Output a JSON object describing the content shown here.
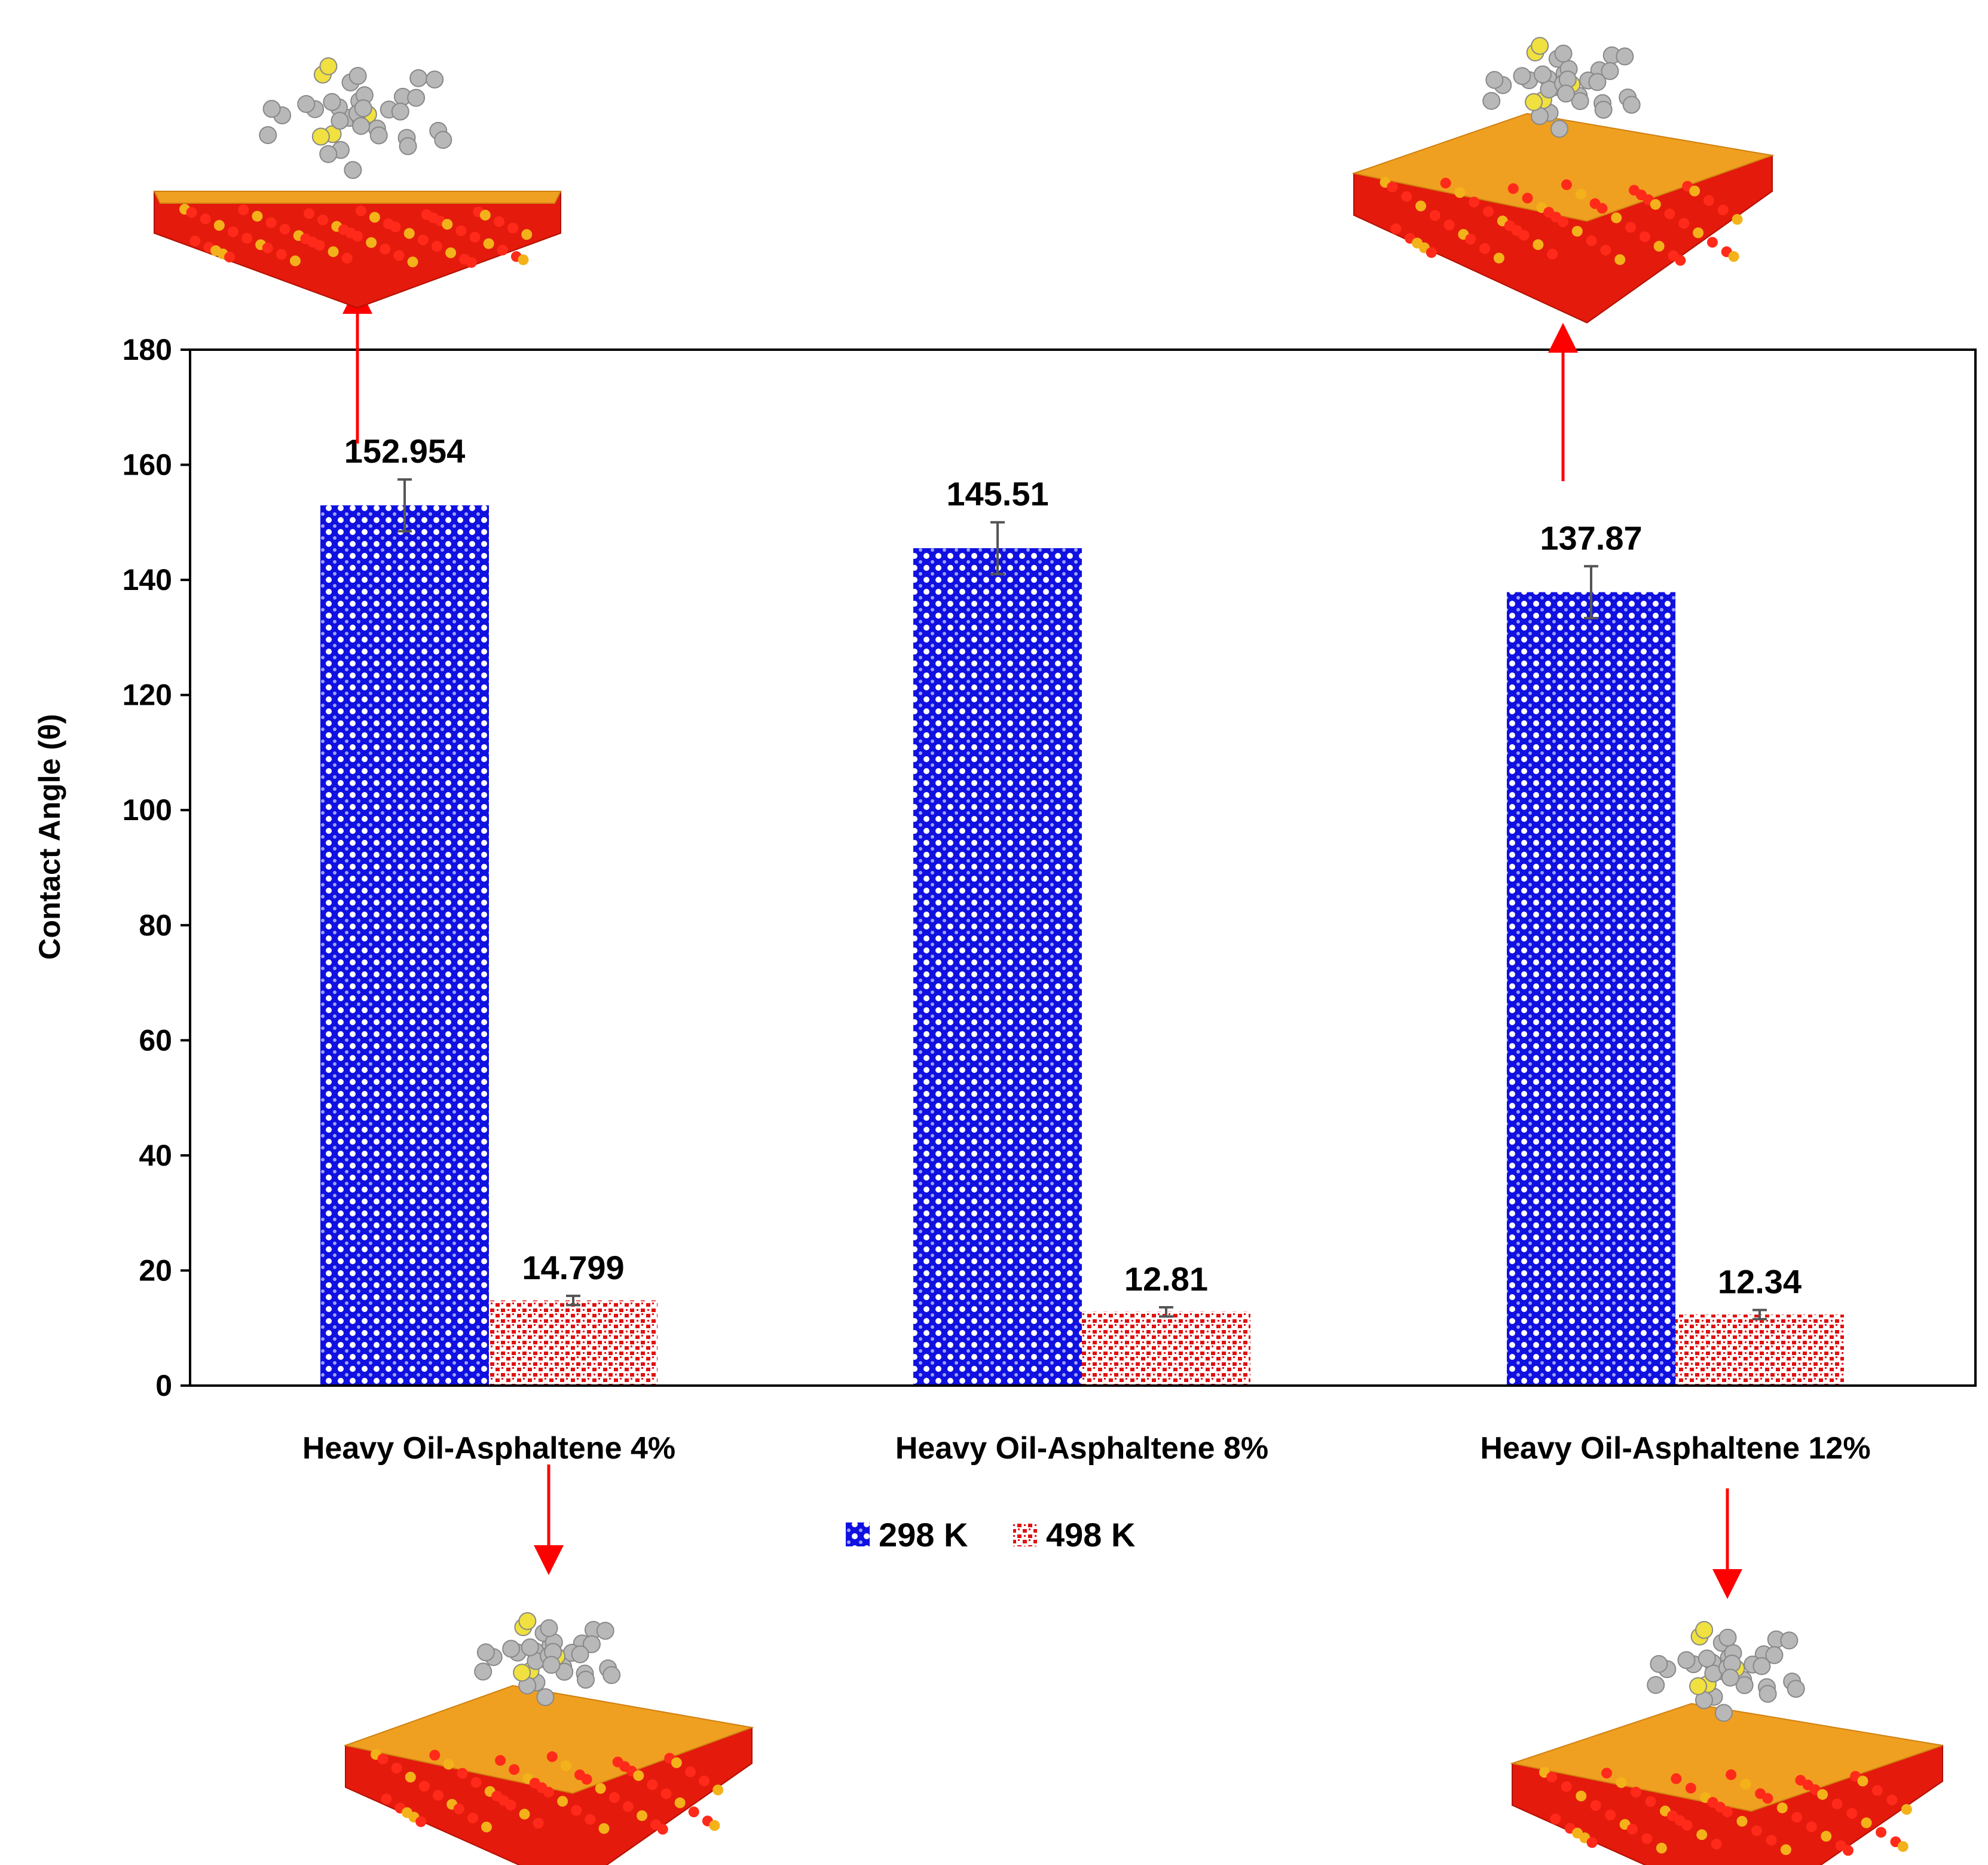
{
  "chart_data": {
    "type": "bar",
    "ylabel": "Contact Angle (θ)",
    "xlabel": "",
    "ylim": [
      0,
      180
    ],
    "yticks": [
      0,
      20,
      40,
      60,
      80,
      100,
      120,
      140,
      160,
      180
    ],
    "categories": [
      "Heavy Oil-Asphaltene 4%",
      "Heavy Oil-Asphaltene 8%",
      "Heavy Oil-Asphaltene 12%"
    ],
    "series": [
      {
        "name": "298 K",
        "color": "#1010e0",
        "values": [
          152.954,
          145.51,
          137.87
        ],
        "labels": [
          "152.954",
          "145.51",
          "137.87"
        ],
        "errors": [
          4.5,
          4.5,
          4.5
        ]
      },
      {
        "name": "498 K",
        "color": "#e01010",
        "values": [
          14.799,
          12.81,
          12.34
        ],
        "labels": [
          "14.799",
          "12.81",
          "12.34"
        ],
        "errors": [
          0.8,
          0.8,
          0.8
        ]
      }
    ],
    "legend_position": "bottom-center",
    "annotation_color": "#ff0000",
    "images": [
      {
        "name": "molecular-snapshot-4pct-298k"
      },
      {
        "name": "molecular-snapshot-4pct-498k"
      },
      {
        "name": "molecular-snapshot-12pct-298k"
      },
      {
        "name": "molecular-snapshot-12pct-498k"
      }
    ]
  }
}
